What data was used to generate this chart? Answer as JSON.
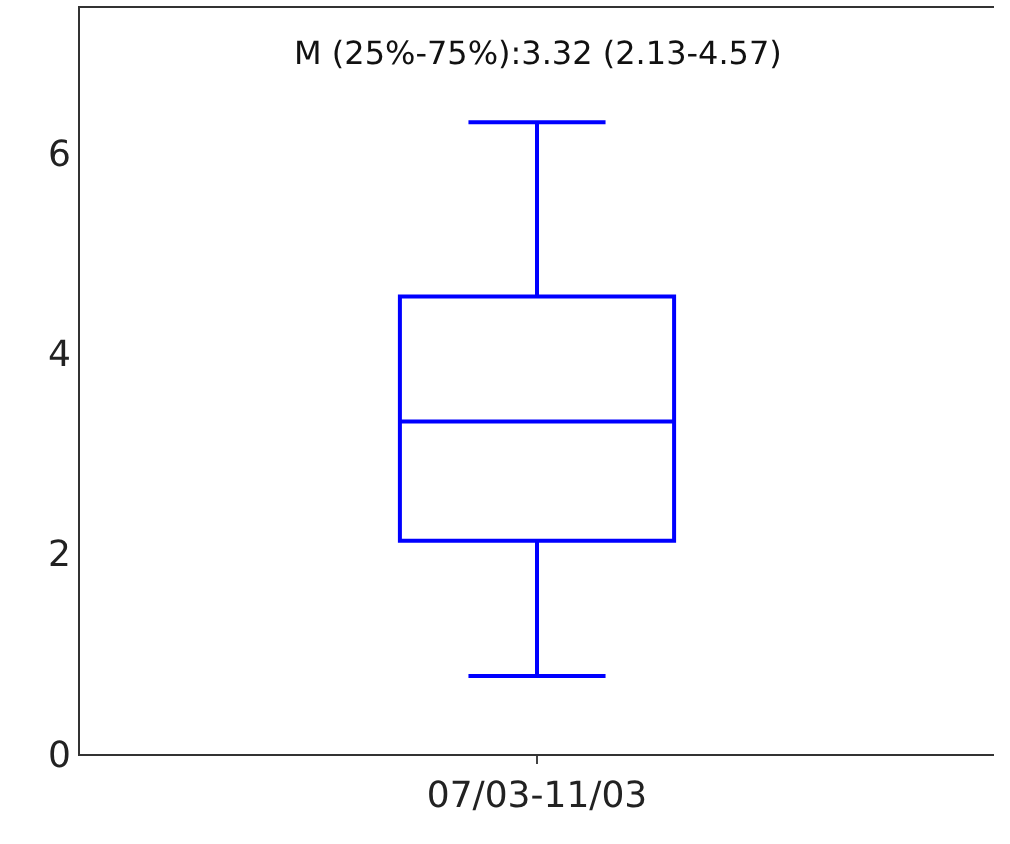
{
  "chart_data": {
    "type": "box",
    "categories": [
      "07/03-11/03"
    ],
    "boxes": [
      {
        "low": 0.78,
        "q1": 2.13,
        "median": 3.32,
        "q3": 4.57,
        "high": 6.31
      }
    ],
    "color": "#0000ff",
    "ylim": [
      0,
      7.45
    ],
    "yticks": [
      0,
      2,
      4,
      6
    ],
    "annotations": [
      "M (25%-75%):3.32 (2.13-4.57)"
    ]
  }
}
